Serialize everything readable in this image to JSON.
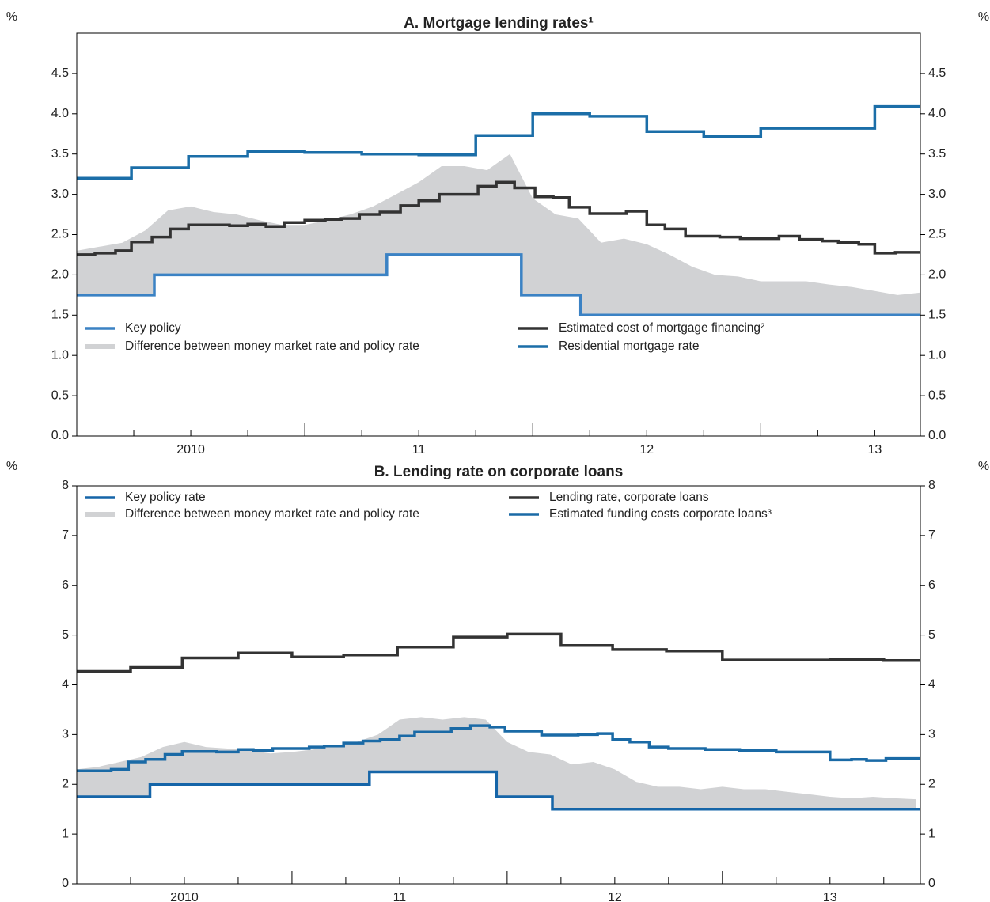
{
  "chart_data": [
    {
      "type": "line",
      "title": "A. Mortgage lending rates¹",
      "y_unit": "%",
      "xlim": [
        2010,
        2013.7
      ],
      "ylim": [
        0,
        5
      ],
      "yticks": [
        {
          "value": 0,
          "label": "0.0"
        },
        0.5,
        {
          "value": 1,
          "label": "1.0"
        },
        1.5,
        {
          "value": 2,
          "label": "2.0"
        },
        2.5,
        {
          "value": 3,
          "label": "3.0"
        },
        3.5,
        {
          "value": 4,
          "label": "4.0"
        },
        4.5
      ],
      "xticks": [
        {
          "value": 2010.5,
          "label": "2010"
        },
        {
          "value": 2011.5,
          "label": "11"
        },
        {
          "value": 2012.5,
          "label": "12"
        },
        {
          "value": 2013.5,
          "label": "13"
        }
      ],
      "xminor": [
        2010.25,
        2010.5,
        2010.75,
        2011.25,
        2011.5,
        2011.75,
        2012.25,
        2012.5,
        2012.75,
        2013.25,
        2013.5
      ],
      "xmajor": [
        2011,
        2012,
        2013
      ],
      "series": [
        {
          "name": "Key policy",
          "kind": "step",
          "color": "#3b82c4",
          "x": [
            2010,
            2010.34,
            2011.36,
            2011.95,
            2012.21,
            2013.7
          ],
          "values": [
            1.75,
            2.0,
            2.25,
            1.75,
            1.5,
            1.5
          ]
        },
        {
          "name": "Difference between money market rate and policy rate",
          "kind": "area",
          "base": 0,
          "color": "#d1d2d4",
          "x": [
            2010.0,
            2010.1,
            2010.2,
            2010.3,
            2010.4,
            2010.5,
            2010.6,
            2010.7,
            2010.8,
            2010.9,
            2011.0,
            2011.1,
            2011.2,
            2011.3,
            2011.4,
            2011.5,
            2011.6,
            2011.7,
            2011.8,
            2011.9,
            2012.0,
            2012.1,
            2012.2,
            2012.3,
            2012.4,
            2012.5,
            2012.6,
            2012.7,
            2012.8,
            2012.9,
            2013.0,
            2013.1,
            2013.2,
            2013.3,
            2013.4,
            2013.5,
            2013.6,
            2013.7
          ],
          "values": [
            0.55,
            0.6,
            0.65,
            0.8,
            0.8,
            0.85,
            0.78,
            0.75,
            0.68,
            0.62,
            0.62,
            0.68,
            0.75,
            0.85,
            0.75,
            0.9,
            1.1,
            1.1,
            1.05,
            1.25,
            1.2,
            1.0,
            0.95,
            0.9,
            0.95,
            0.88,
            0.75,
            0.6,
            0.5,
            0.48,
            0.42,
            0.42,
            0.42,
            0.38,
            0.35,
            0.3,
            0.25,
            0.28
          ]
        },
        {
          "name": "Estimated cost of mortgage financing²",
          "kind": "step",
          "color": "#333333",
          "x": [
            2010.0,
            2010.08,
            2010.17,
            2010.24,
            2010.33,
            2010.41,
            2010.49,
            2010.67,
            2010.75,
            2010.83,
            2010.91,
            2011.0,
            2011.09,
            2011.16,
            2011.24,
            2011.33,
            2011.42,
            2011.5,
            2011.59,
            2011.76,
            2011.84,
            2011.92,
            2012.01,
            2012.09,
            2012.16,
            2012.25,
            2012.41,
            2012.5,
            2012.58,
            2012.67,
            2012.82,
            2012.91,
            2013.08,
            2013.17,
            2013.27,
            2013.34,
            2013.43,
            2013.5,
            2013.59,
            2013.7
          ],
          "values": [
            2.25,
            2.27,
            2.3,
            2.41,
            2.47,
            2.57,
            2.62,
            2.61,
            2.63,
            2.6,
            2.65,
            2.68,
            2.69,
            2.7,
            2.75,
            2.78,
            2.86,
            2.92,
            3.0,
            3.1,
            3.15,
            3.08,
            2.97,
            2.96,
            2.84,
            2.76,
            2.79,
            2.62,
            2.57,
            2.48,
            2.47,
            2.45,
            2.48,
            2.44,
            2.42,
            2.4,
            2.38,
            2.27,
            2.28,
            2.28
          ]
        },
        {
          "name": "Residential mortgage rate",
          "kind": "step",
          "color": "#1b6ea8",
          "x": [
            2010.0,
            2010.24,
            2010.49,
            2010.75,
            2011.0,
            2011.25,
            2011.5,
            2011.75,
            2012.0,
            2012.25,
            2012.5,
            2012.75,
            2013.0,
            2013.5,
            2013.7
          ],
          "values": [
            3.2,
            3.33,
            3.47,
            3.53,
            3.52,
            3.5,
            3.49,
            3.73,
            4.0,
            3.97,
            3.78,
            3.72,
            3.82,
            4.09,
            4.09
          ]
        }
      ]
    },
    {
      "type": "line",
      "title": "B. Lending rate on corporate loans",
      "y_unit": "%",
      "xlim": [
        2010,
        2013.92
      ],
      "ylim": [
        0,
        8
      ],
      "yticks": [
        0,
        1,
        2,
        3,
        4,
        5,
        6,
        7,
        8
      ],
      "xticks": [
        {
          "value": 2010.5,
          "label": "2010"
        },
        {
          "value": 2011.5,
          "label": "11"
        },
        {
          "value": 2012.5,
          "label": "12"
        },
        {
          "value": 2013.5,
          "label": "13"
        }
      ],
      "xminor": [
        2010.25,
        2010.5,
        2010.75,
        2011.25,
        2011.5,
        2011.75,
        2012.25,
        2012.5,
        2012.75,
        2013.25,
        2013.5,
        2013.75
      ],
      "xmajor": [
        2011,
        2012,
        2013
      ],
      "series": [
        {
          "name": "Key policy rate",
          "kind": "step",
          "color": "#1565a8",
          "x": [
            2010,
            2010.34,
            2011.36,
            2011.95,
            2012.21,
            2013.92
          ],
          "values": [
            1.75,
            2.0,
            2.25,
            1.75,
            1.5,
            1.5
          ]
        },
        {
          "name": "Difference between money market rate and policy rate",
          "kind": "area",
          "base": 0,
          "color": "#d1d2d4",
          "x": [
            2010.0,
            2010.1,
            2010.2,
            2010.3,
            2010.4,
            2010.5,
            2010.6,
            2010.7,
            2010.8,
            2010.9,
            2011.0,
            2011.1,
            2011.2,
            2011.3,
            2011.4,
            2011.5,
            2011.6,
            2011.7,
            2011.8,
            2011.9,
            2012.0,
            2012.1,
            2012.2,
            2012.3,
            2012.4,
            2012.5,
            2012.6,
            2012.7,
            2012.8,
            2012.9,
            2013.0,
            2013.1,
            2013.2,
            2013.3,
            2013.4,
            2013.5,
            2013.6,
            2013.7,
            2013.8,
            2013.9
          ],
          "values": [
            0.55,
            0.6,
            0.7,
            0.8,
            0.75,
            0.85,
            0.75,
            0.72,
            0.68,
            0.62,
            0.65,
            0.7,
            0.78,
            0.85,
            0.75,
            1.05,
            1.1,
            1.05,
            1.1,
            1.05,
            1.1,
            0.9,
            0.85,
            0.9,
            0.95,
            0.8,
            0.55,
            0.45,
            0.45,
            0.4,
            0.45,
            0.4,
            0.4,
            0.35,
            0.3,
            0.25,
            0.22,
            0.25,
            0.22,
            0.2
          ]
        },
        {
          "name": "Lending rate, corporate loans",
          "kind": "step",
          "color": "#333333",
          "x": [
            2010.0,
            2010.25,
            2010.49,
            2010.75,
            2011.0,
            2011.24,
            2011.49,
            2011.75,
            2012.0,
            2012.25,
            2012.49,
            2012.74,
            2013.0,
            2013.5,
            2013.75,
            2013.92
          ],
          "values": [
            4.27,
            4.35,
            4.54,
            4.64,
            4.56,
            4.6,
            4.76,
            4.96,
            5.02,
            4.79,
            4.71,
            4.68,
            4.5,
            4.51,
            4.49,
            4.49
          ]
        },
        {
          "name": "Estimated funding costs corporate loans³",
          "kind": "step",
          "color": "#1a6aa6",
          "x": [
            2010.0,
            2010.16,
            2010.24,
            2010.32,
            2010.41,
            2010.49,
            2010.65,
            2010.75,
            2010.82,
            2010.91,
            2011.08,
            2011.15,
            2011.24,
            2011.33,
            2011.41,
            2011.5,
            2011.57,
            2011.74,
            2011.83,
            2011.92,
            2011.99,
            2012.16,
            2012.33,
            2012.42,
            2012.49,
            2012.57,
            2012.66,
            2012.75,
            2012.92,
            2013.08,
            2013.25,
            2013.5,
            2013.6,
            2013.67,
            2013.76,
            2013.92
          ],
          "values": [
            2.27,
            2.3,
            2.45,
            2.5,
            2.6,
            2.66,
            2.65,
            2.7,
            2.68,
            2.72,
            2.75,
            2.77,
            2.83,
            2.87,
            2.9,
            2.97,
            3.05,
            3.12,
            3.18,
            3.15,
            3.07,
            2.99,
            3.0,
            3.02,
            2.9,
            2.85,
            2.75,
            2.72,
            2.7,
            2.68,
            2.65,
            2.49,
            2.5,
            2.48,
            2.52,
            2.52
          ]
        }
      ]
    }
  ]
}
